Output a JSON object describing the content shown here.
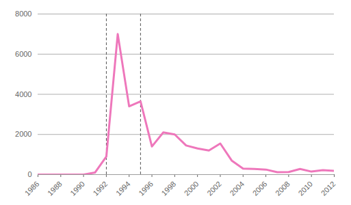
{
  "chart_data": {
    "type": "line",
    "x": [
      1986,
      1987,
      1988,
      1989,
      1990,
      1991,
      1992,
      1993,
      1994,
      1995,
      1996,
      1997,
      1998,
      1999,
      2000,
      2001,
      2002,
      2003,
      2004,
      2005,
      2006,
      2007,
      2008,
      2009,
      2010,
      2011,
      2012
    ],
    "values": [
      0,
      0,
      0,
      0,
      0,
      100,
      900,
      7000,
      3400,
      3650,
      1400,
      2100,
      2000,
      1450,
      1300,
      1200,
      1550,
      700,
      300,
      280,
      250,
      120,
      130,
      280,
      150,
      220,
      190
    ],
    "color": "#ee77bb",
    "xlim": [
      1986,
      2012
    ],
    "xticks": [
      1986,
      1988,
      1990,
      1992,
      1994,
      1996,
      1998,
      2000,
      2002,
      2004,
      2006,
      2008,
      2010,
      2012
    ],
    "ylim": [
      0,
      8000
    ],
    "yticks": [
      0,
      2000,
      4000,
      6000,
      8000
    ],
    "grid": true,
    "vlines": [
      1992,
      1995
    ]
  }
}
